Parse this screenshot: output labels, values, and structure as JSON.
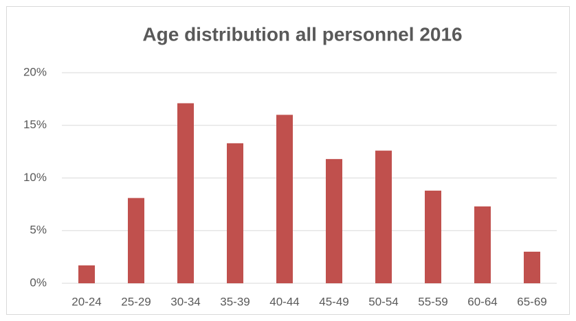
{
  "chart_data": {
    "type": "bar",
    "title": "Age distribution all personnel 2016",
    "categories": [
      "20-24",
      "25-29",
      "30-34",
      "35-39",
      "40-44",
      "45-49",
      "50-54",
      "55-59",
      "60-64",
      "65-69"
    ],
    "values": [
      1.7,
      8.1,
      17.1,
      13.3,
      16.0,
      11.8,
      12.6,
      8.8,
      7.3,
      3.0
    ],
    "color": "#c0504d",
    "ylim": [
      0,
      20
    ],
    "yticks": [
      {
        "value": 0,
        "label": "0%"
      },
      {
        "value": 5,
        "label": "5%"
      },
      {
        "value": 10,
        "label": "10%"
      },
      {
        "value": 15,
        "label": "15%"
      },
      {
        "value": 20,
        "label": "20%"
      }
    ],
    "grid": true
  }
}
